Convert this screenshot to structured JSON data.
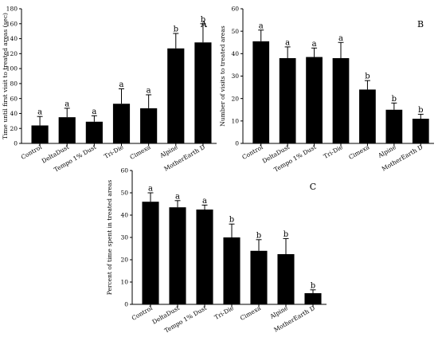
{
  "chart_data": [
    {
      "type": "bar",
      "panel": "A",
      "ylabel": "Time until first visit to treated areas (sec)",
      "ylim": [
        0,
        180
      ],
      "yticks": [
        0,
        20,
        40,
        60,
        80,
        100,
        120,
        140,
        160,
        180
      ],
      "categories": [
        "Control",
        "DeltaDust",
        "Tempo 1% Dust",
        "Tri-Die",
        "Cimexa",
        "Alpine",
        "MotherEarth D"
      ],
      "values": [
        24,
        35,
        29,
        53,
        47,
        127,
        135
      ],
      "errors": [
        12,
        12,
        8,
        20,
        18,
        20,
        25
      ],
      "letters": [
        "a",
        "a",
        "a",
        "a",
        "a",
        "b",
        "b"
      ],
      "bar_color": "#000000"
    },
    {
      "type": "bar",
      "panel": "B",
      "ylabel": "Number of visits to treated areas",
      "ylim": [
        0,
        60
      ],
      "yticks": [
        0,
        10,
        20,
        30,
        40,
        50,
        60
      ],
      "categories": [
        "Control",
        "DeltaDust",
        "Tempo 1% Dust",
        "Tri-Die",
        "Cimexa",
        "Alpine",
        "MotherEarth D"
      ],
      "values": [
        45.5,
        38,
        38.5,
        38,
        24,
        15,
        11
      ],
      "errors": [
        5,
        5,
        4,
        7,
        4,
        3,
        2
      ],
      "letters": [
        "a",
        "a",
        "a",
        "a",
        "b",
        "b",
        "b"
      ],
      "bar_color": "#000000"
    },
    {
      "type": "bar",
      "panel": "C",
      "ylabel": "Percent of time spent in treated areas",
      "ylim": [
        0,
        60
      ],
      "yticks": [
        0,
        10,
        20,
        30,
        40,
        50,
        60
      ],
      "categories": [
        "Control",
        "DeltaDust",
        "Tempo 1% Dust",
        "Tri-Die",
        "Cimexa",
        "Alpine",
        "MotherEarth D"
      ],
      "values": [
        46,
        43.5,
        42.5,
        30,
        24,
        22.5,
        5
      ],
      "errors": [
        4,
        3,
        2,
        6,
        5,
        7,
        1.5
      ],
      "letters": [
        "a",
        "a",
        "a",
        "b",
        "b",
        "b",
        "b"
      ],
      "bar_color": "#000000"
    }
  ]
}
